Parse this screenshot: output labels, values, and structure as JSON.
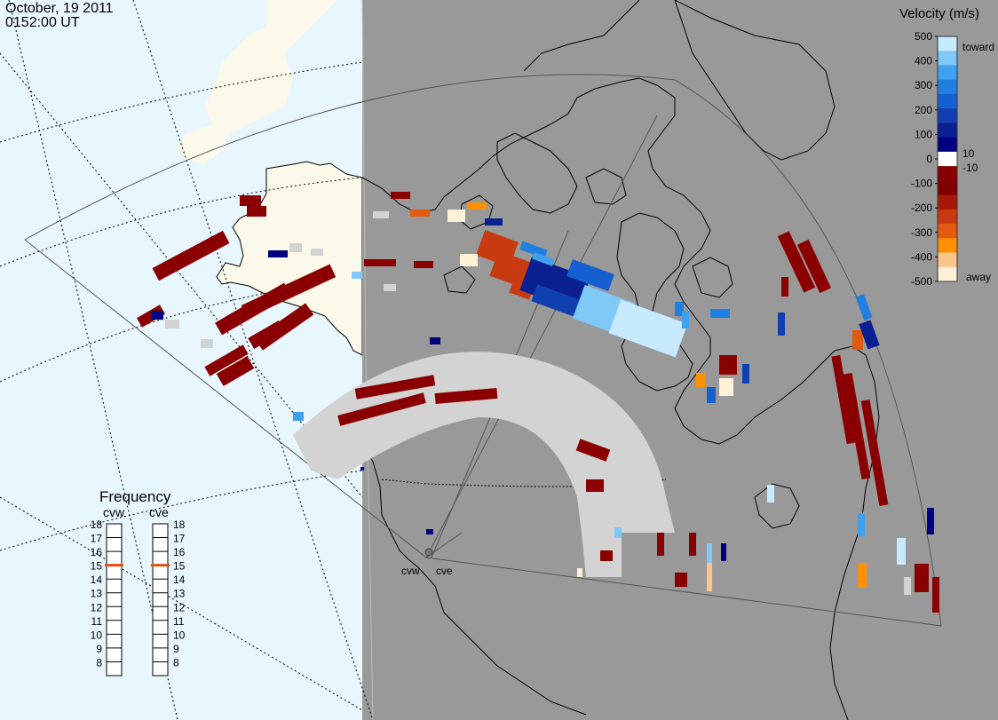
{
  "header": {
    "date": "October, 19 2011",
    "time": "0152:00 UT"
  },
  "colors": {
    "ocean": "#e8f6fd",
    "night_shade": "#999999",
    "land_day": "#fbf9ea",
    "ground_scatter": "#d3d3d3"
  },
  "velocity_scale": {
    "title": "Velocity (m/s)",
    "ticks": [
      "500",
      "400",
      "300",
      "200",
      "100",
      "0",
      "-100",
      "-200",
      "-300",
      "-400",
      "-500"
    ],
    "near_zero_upper": "10",
    "near_zero_lower": "-10",
    "toward_label": "toward",
    "away_label": "away",
    "colors": [
      "#fff0d8",
      "#ffc48a",
      "#ff9000",
      "#e25a10",
      "#c83a10",
      "#a81808",
      "#800000",
      "#8a0000",
      "#ffffff",
      "#000080",
      "#0a2090",
      "#1040b0",
      "#1560d0",
      "#2080e0",
      "#40a0f0",
      "#80c8f8",
      "#c8eaff"
    ]
  },
  "frequency_panel": {
    "title": "Frequency",
    "radars": [
      "cvw",
      "cve"
    ],
    "left_scale": [
      "18",
      "17",
      "16",
      "15",
      "14",
      "13",
      "12",
      "11",
      "10",
      "9",
      "8"
    ],
    "right_scale": [
      "18",
      "17",
      "16",
      "15",
      "14",
      "13",
      "12",
      "11",
      "10",
      "9",
      "8"
    ],
    "current_frequency": 15
  },
  "radar_sites": {
    "west_label": "cvw",
    "east_label": "cve"
  }
}
